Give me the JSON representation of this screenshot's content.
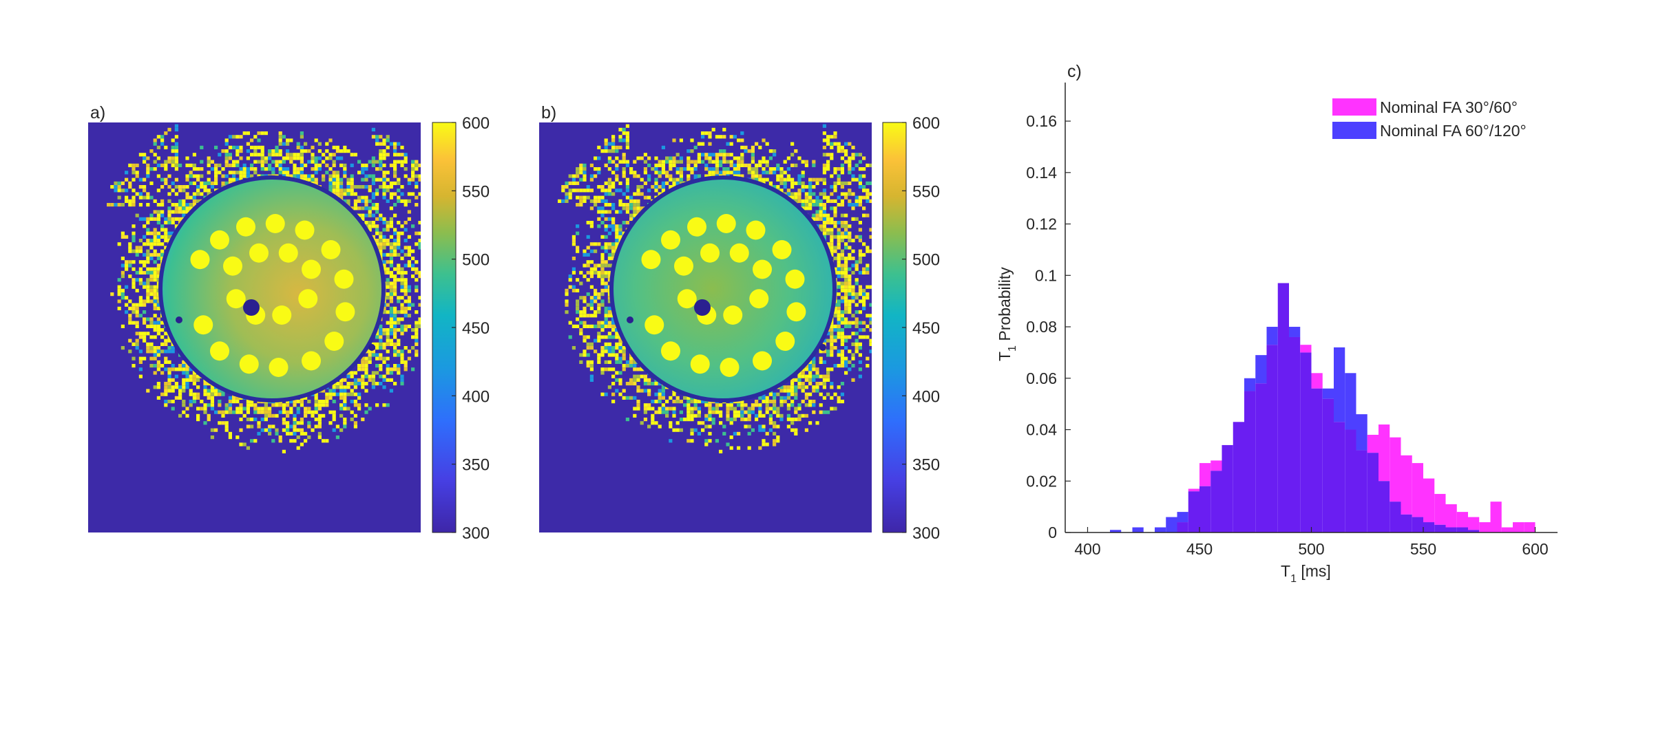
{
  "panels": {
    "a": {
      "label": "a)"
    },
    "b": {
      "label": "b)"
    },
    "c": {
      "label": "c)"
    }
  },
  "colorbar": {
    "ticks": [
      "600",
      "550",
      "500",
      "450",
      "400",
      "350",
      "300"
    ],
    "range": [
      300,
      600
    ],
    "colormap": "parula"
  },
  "colors": {
    "map_background": "#3d2aa8",
    "series_1": "#ff33ff",
    "series_2": "#4d40ff",
    "overlap": "#6a1ef2"
  },
  "chart_data": {
    "type": "histogram",
    "xlabel_main": "T",
    "xlabel_sub": "1",
    "xlabel_rest": " [ms]",
    "ylabel_main": "T",
    "ylabel_sub": "1",
    "ylabel_rest": " Probability",
    "xlim": [
      390,
      610
    ],
    "ylim": [
      0,
      0.175
    ],
    "x_ticks": [
      "400",
      "450",
      "500",
      "550",
      "600"
    ],
    "y_ticks": [
      "0",
      "0.02",
      "0.04",
      "0.06",
      "0.08",
      "0.1",
      "0.12",
      "0.14",
      "0.16"
    ],
    "bin_width": 5,
    "legend_location": "top-right",
    "series": [
      {
        "name": "Nominal FA 30°/60°",
        "color": "#ff33ff",
        "bins": [
          [
            440,
            0.004
          ],
          [
            445,
            0.017
          ],
          [
            450,
            0.027
          ],
          [
            455,
            0.028
          ],
          [
            460,
            0.034
          ],
          [
            465,
            0.043
          ],
          [
            470,
            0.055
          ],
          [
            475,
            0.058
          ],
          [
            480,
            0.073
          ],
          [
            485,
            0.097
          ],
          [
            490,
            0.076
          ],
          [
            495,
            0.073
          ],
          [
            500,
            0.062
          ],
          [
            505,
            0.052
          ],
          [
            510,
            0.043
          ],
          [
            515,
            0.04
          ],
          [
            520,
            0.032
          ],
          [
            525,
            0.038
          ],
          [
            530,
            0.042
          ],
          [
            535,
            0.037
          ],
          [
            540,
            0.03
          ],
          [
            545,
            0.027
          ],
          [
            550,
            0.021
          ],
          [
            555,
            0.015
          ],
          [
            560,
            0.011
          ],
          [
            565,
            0.008
          ],
          [
            570,
            0.006
          ],
          [
            575,
            0.004
          ],
          [
            580,
            0.012
          ],
          [
            585,
            0.002
          ],
          [
            590,
            0.004
          ],
          [
            595,
            0.004
          ]
        ]
      },
      {
        "name": "Nominal FA 60°/120°",
        "color": "#4d40ff",
        "bins": [
          [
            410,
            0.001
          ],
          [
            420,
            0.002
          ],
          [
            430,
            0.002
          ],
          [
            435,
            0.006
          ],
          [
            440,
            0.008
          ],
          [
            445,
            0.016
          ],
          [
            450,
            0.018
          ],
          [
            455,
            0.024
          ],
          [
            460,
            0.034
          ],
          [
            465,
            0.043
          ],
          [
            470,
            0.06
          ],
          [
            475,
            0.069
          ],
          [
            480,
            0.08
          ],
          [
            485,
            0.097
          ],
          [
            490,
            0.08
          ],
          [
            495,
            0.07
          ],
          [
            500,
            0.056
          ],
          [
            505,
            0.056
          ],
          [
            510,
            0.072
          ],
          [
            515,
            0.062
          ],
          [
            520,
            0.046
          ],
          [
            525,
            0.031
          ],
          [
            530,
            0.02
          ],
          [
            535,
            0.012
          ],
          [
            540,
            0.007
          ],
          [
            545,
            0.006
          ],
          [
            550,
            0.004
          ],
          [
            555,
            0.003
          ],
          [
            560,
            0.002
          ],
          [
            565,
            0.002
          ],
          [
            570,
            0.001
          ]
        ]
      }
    ]
  }
}
